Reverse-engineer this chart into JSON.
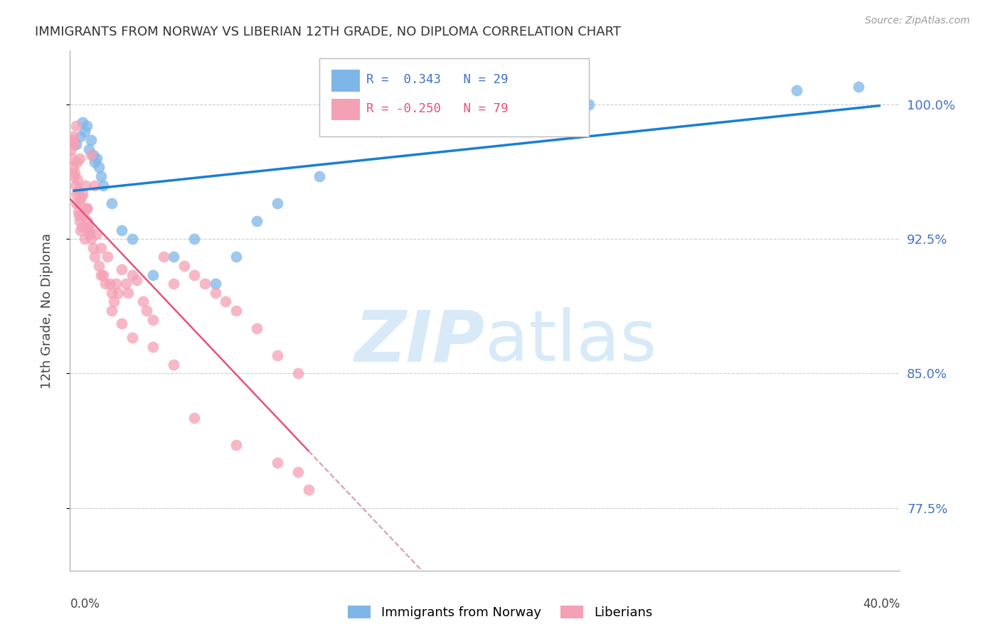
{
  "title": "IMMIGRANTS FROM NORWAY VS LIBERIAN 12TH GRADE, NO DIPLOMA CORRELATION CHART",
  "source": "Source: ZipAtlas.com",
  "ylabel": "12th Grade, No Diploma",
  "xlim": [
    0.0,
    40.0
  ],
  "ylim": [
    74.0,
    103.0
  ],
  "yticks": [
    77.5,
    85.0,
    92.5,
    100.0
  ],
  "ytick_labels": [
    "77.5%",
    "85.0%",
    "92.5%",
    "100.0%"
  ],
  "xtick_labels": [
    "0.0%",
    "40.0%"
  ],
  "legend_label_norway": "Immigrants from Norway",
  "legend_label_liberian": "Liberians",
  "norway_color": "#7eb6e8",
  "liberian_color": "#f4a0b5",
  "norway_line_color": "#1a7fd4",
  "liberian_line_color": "#e8507a",
  "liberian_dashed_color": "#d0a0b0",
  "norway_R": 0.343,
  "norway_N": 29,
  "liberian_R": -0.25,
  "liberian_N": 79,
  "norway_scatter_x": [
    0.3,
    0.5,
    0.6,
    0.7,
    0.8,
    0.9,
    1.0,
    1.1,
    1.2,
    1.3,
    1.4,
    1.5,
    1.6,
    2.0,
    2.5,
    3.0,
    4.0,
    5.0,
    6.0,
    7.0,
    8.0,
    9.0,
    10.0,
    12.0,
    15.0,
    20.0,
    25.0,
    35.0,
    38.0
  ],
  "norway_scatter_y": [
    97.8,
    98.2,
    99.0,
    98.5,
    98.8,
    97.5,
    98.0,
    97.2,
    96.8,
    97.0,
    96.5,
    96.0,
    95.5,
    94.5,
    93.0,
    92.5,
    90.5,
    91.5,
    92.5,
    90.0,
    91.5,
    93.5,
    94.5,
    96.0,
    98.5,
    99.0,
    100.0,
    100.8,
    101.0
  ],
  "liberian_scatter_x": [
    0.05,
    0.1,
    0.12,
    0.15,
    0.18,
    0.2,
    0.22,
    0.25,
    0.28,
    0.3,
    0.32,
    0.35,
    0.38,
    0.4,
    0.42,
    0.45,
    0.48,
    0.5,
    0.55,
    0.6,
    0.65,
    0.7,
    0.75,
    0.8,
    0.85,
    0.9,
    0.95,
    1.0,
    1.1,
    1.2,
    1.3,
    1.4,
    1.5,
    1.6,
    1.7,
    1.8,
    1.9,
    2.0,
    2.1,
    2.2,
    2.3,
    2.5,
    2.7,
    2.8,
    3.0,
    3.2,
    3.5,
    3.7,
    4.0,
    4.5,
    5.0,
    5.5,
    6.0,
    6.5,
    7.0,
    7.5,
    8.0,
    9.0,
    10.0,
    11.0,
    0.15,
    0.3,
    0.45,
    0.6,
    0.8,
    0.9,
    1.0,
    1.2,
    1.5,
    2.0,
    2.5,
    3.0,
    4.0,
    5.0,
    6.0,
    8.0,
    10.0,
    11.0,
    11.5
  ],
  "liberian_scatter_y": [
    97.5,
    97.0,
    98.0,
    96.5,
    96.0,
    97.8,
    96.2,
    95.5,
    95.0,
    94.5,
    96.8,
    95.8,
    94.0,
    95.2,
    93.8,
    94.5,
    93.5,
    93.0,
    94.8,
    93.2,
    93.8,
    92.5,
    95.5,
    94.2,
    93.5,
    93.0,
    92.8,
    92.5,
    92.0,
    91.5,
    92.8,
    91.0,
    92.0,
    90.5,
    90.0,
    91.5,
    90.0,
    89.5,
    89.0,
    90.0,
    89.5,
    90.8,
    90.0,
    89.5,
    90.5,
    90.2,
    89.0,
    88.5,
    88.0,
    91.5,
    90.0,
    91.0,
    90.5,
    90.0,
    89.5,
    89.0,
    88.5,
    87.5,
    86.0,
    85.0,
    98.2,
    98.8,
    97.0,
    95.0,
    94.2,
    93.2,
    97.2,
    95.5,
    90.5,
    88.5,
    87.8,
    87.0,
    86.5,
    85.5,
    82.5,
    81.0,
    80.0,
    79.5,
    78.5
  ],
  "background_color": "#ffffff",
  "grid_color": "#cccccc",
  "title_color": "#333333",
  "right_axis_color": "#4472c4",
  "watermark_color": "#d8eaf8"
}
